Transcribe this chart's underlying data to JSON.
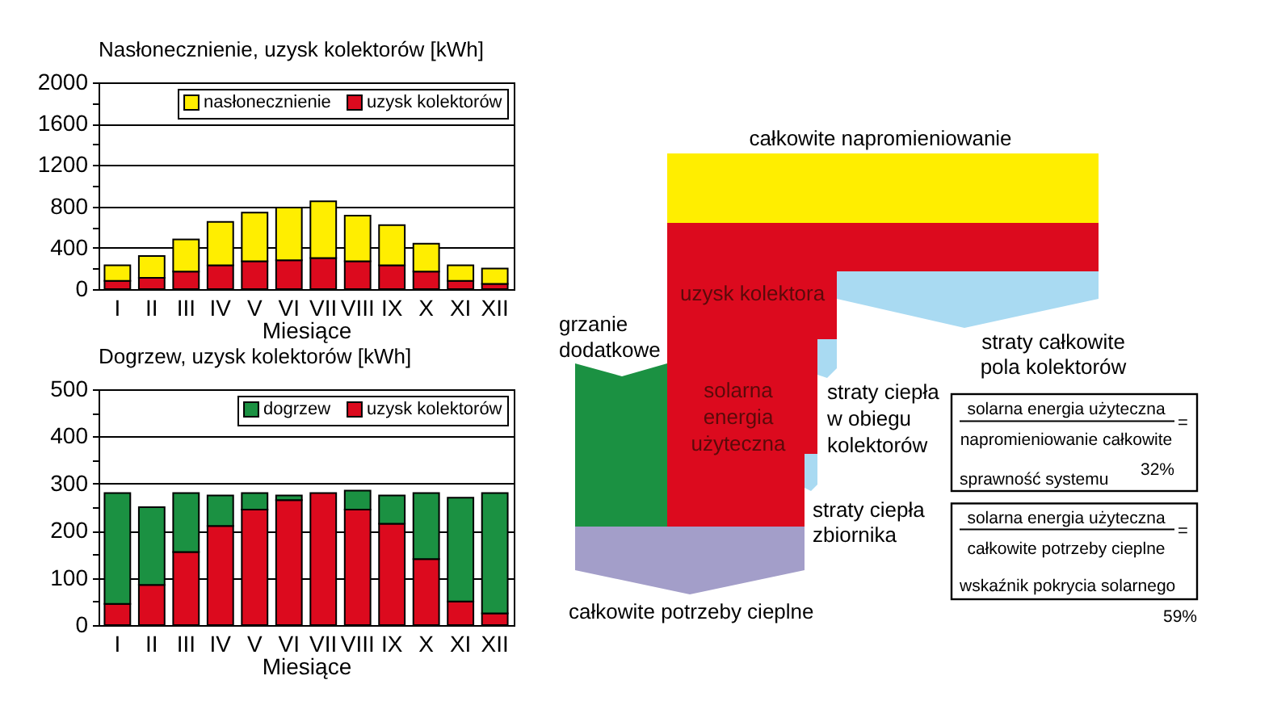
{
  "chart_data": [
    {
      "type": "bar",
      "title": "Nasłonecznienie, uzysk kolektorów [kWh]",
      "xlabel": "Miesiące",
      "categories": [
        "I",
        "II",
        "III",
        "IV",
        "V",
        "VI",
        "VII",
        "VIII",
        "IX",
        "X",
        "XI",
        "XII"
      ],
      "stacked": true,
      "series": [
        {
          "name": "uzysk kolektorów",
          "color": "#dc0a1e",
          "values": [
            80,
            110,
            170,
            230,
            270,
            280,
            300,
            270,
            230,
            170,
            80,
            50
          ]
        },
        {
          "name": "nasłonecznienie",
          "color": "#ffee00",
          "values": [
            150,
            210,
            310,
            420,
            470,
            510,
            550,
            440,
            390,
            270,
            150,
            150
          ]
        }
      ],
      "ylim": [
        0,
        2000
      ],
      "yticks": [
        0,
        {
          "value": 200,
          "label": null
        },
        400,
        {
          "value": 600,
          "label": null
        },
        800,
        {
          "value": 1000,
          "label": null
        },
        1200,
        {
          "value": 1400,
          "label": null
        },
        1600,
        {
          "value": 1800,
          "label": null
        },
        2000
      ],
      "grid": "y",
      "legend": "top right"
    },
    {
      "type": "bar",
      "title": "Dogrzew, uzysk kolektorów [kWh]",
      "xlabel": "Miesiące",
      "categories": [
        "I",
        "II",
        "III",
        "IV",
        "V",
        "VI",
        "VII",
        "VIII",
        "IX",
        "X",
        "XI",
        "XII"
      ],
      "stacked": true,
      "series": [
        {
          "name": "uzysk kolektorów",
          "color": "#dc0a1e",
          "values": [
            45,
            85,
            155,
            210,
            245,
            265,
            280,
            245,
            215,
            140,
            50,
            25
          ]
        },
        {
          "name": "dogrzew",
          "color": "#1b9142",
          "values": [
            235,
            165,
            125,
            65,
            35,
            10,
            null,
            40,
            60,
            140,
            220,
            255
          ]
        }
      ],
      "ylim": [
        0,
        500
      ],
      "yticks": [
        0,
        {
          "value": 50,
          "label": null
        },
        100,
        {
          "value": 150,
          "label": null
        },
        200,
        {
          "value": 250,
          "label": null
        },
        300,
        {
          "value": 350,
          "label": null
        },
        400,
        {
          "value": 450,
          "label": null
        },
        500
      ],
      "grid": "y",
      "legend": "top right"
    },
    {
      "type": "other",
      "annotations": [
        "całkowite napromieniowanie",
        "uzysk kolektora",
        "grzanie dodatkowe",
        "solarna energia użyteczna",
        "straty ciepła w obiegu kolektorów",
        "straty ciepła zbiornika",
        "całkowite potrzeby cieplne",
        "straty całkowite pola kolektorów",
        "solarna energia użyteczna",
        "napromieniowanie całkowite",
        "=",
        "sprawność systemu",
        "32%",
        "solarna energia użyteczna",
        "całkowite potrzeby cieplne",
        "=",
        "wskaźnik pokrycia solarnego",
        "59%"
      ]
    }
  ]
}
